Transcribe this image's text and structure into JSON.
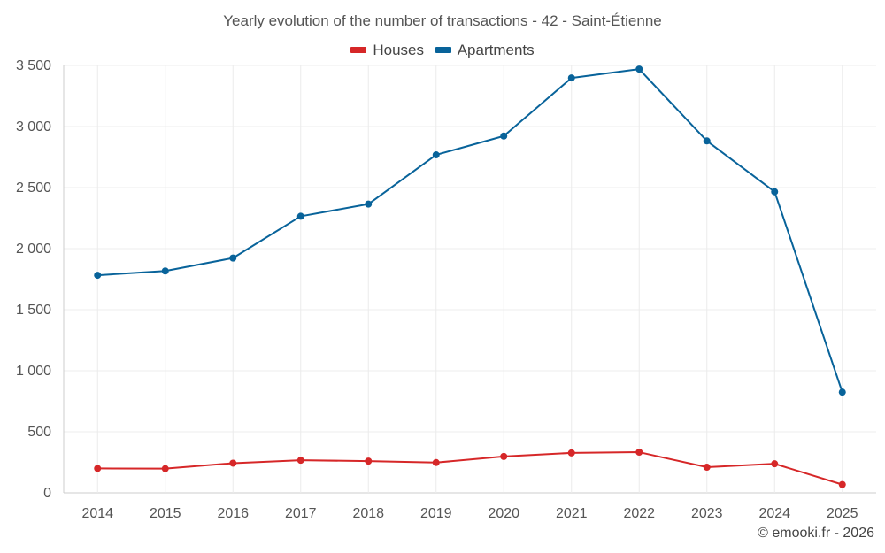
{
  "chart_data": {
    "type": "line",
    "title": "Yearly evolution of the number of transactions - 42 - Saint-Étienne",
    "categories": [
      "2014",
      "2015",
      "2016",
      "2017",
      "2018",
      "2019",
      "2020",
      "2021",
      "2022",
      "2023",
      "2024",
      "2025"
    ],
    "series": [
      {
        "name": "Houses",
        "color": "#d62728",
        "values": [
          200,
          198,
          243,
          267,
          260,
          248,
          298,
          327,
          333,
          210,
          238,
          68
        ]
      },
      {
        "name": "Apartments",
        "color": "#08639a",
        "values": [
          1782,
          1817,
          1923,
          2265,
          2365,
          2768,
          2922,
          3398,
          3470,
          2882,
          2466,
          825
        ]
      }
    ],
    "y_ticks": [
      "0",
      "500",
      "1 000",
      "1 500",
      "2 000",
      "2 500",
      "3 000",
      "3 500"
    ],
    "ylim": [
      0,
      3500
    ],
    "xlabel": "",
    "ylabel": "",
    "legend_position": "top-center",
    "grid": true
  },
  "credit": "© emooki.fr - 2026"
}
